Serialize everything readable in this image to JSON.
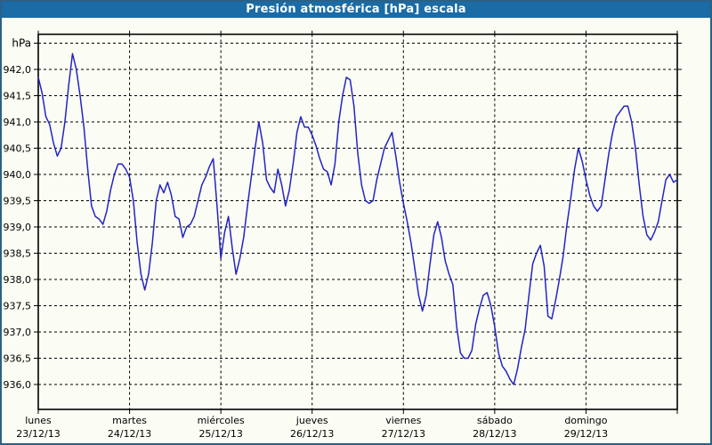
{
  "header": {
    "title": "Presión atmosférica [hPa] escala"
  },
  "colors": {
    "titlebar_bg": "#1a6ba6",
    "titlebar_text": "#ffffff",
    "window_border": "#2c6187",
    "background": "#fbfcf4",
    "grid": "#000000",
    "axis_text": "#000000",
    "line": "#2424c4"
  },
  "chart_data": {
    "type": "line",
    "title": "Presión atmosférica [hPa] escala",
    "ylabel": "hPa",
    "unit": "hPa",
    "grid": "dashed",
    "legend_position": "none",
    "decimal_comma": true,
    "ylim": [
      935.5,
      942.7
    ],
    "y_grid_min": 936.0,
    "y_grid_max": 942.5,
    "y_step": 0.5,
    "y_labeled_max": 942.0,
    "categories": [
      {
        "day": "lunes",
        "date": "23/12/13"
      },
      {
        "day": "martes",
        "date": "24/12/13"
      },
      {
        "day": "miércoles",
        "date": "25/12/13"
      },
      {
        "day": "jueves",
        "date": "26/12/13"
      },
      {
        "day": "viernes",
        "date": "27/12/13"
      },
      {
        "day": "sábado",
        "date": "28/12/13"
      },
      {
        "day": "domingo",
        "date": "29/12/13"
      }
    ],
    "points_per_day": 24,
    "series": [
      {
        "name": "Presión atmosférica",
        "color": "#2424c4",
        "values": [
          941.85,
          941.55,
          941.1,
          940.95,
          940.6,
          940.35,
          940.5,
          941.0,
          941.7,
          942.3,
          942.0,
          941.5,
          940.9,
          940.1,
          939.4,
          939.2,
          939.15,
          939.05,
          939.3,
          939.7,
          940.0,
          940.2,
          940.2,
          940.1,
          939.95,
          939.5,
          938.7,
          938.1,
          937.8,
          938.1,
          938.7,
          939.5,
          939.8,
          939.65,
          939.85,
          939.6,
          939.2,
          939.15,
          938.8,
          939.0,
          939.05,
          939.2,
          939.5,
          939.8,
          939.95,
          940.15,
          940.3,
          939.4,
          938.4,
          938.9,
          939.2,
          938.6,
          938.1,
          938.4,
          938.8,
          939.4,
          939.95,
          940.5,
          941.0,
          940.6,
          939.9,
          939.75,
          939.65,
          940.1,
          939.8,
          939.4,
          939.7,
          940.2,
          940.8,
          941.1,
          940.9,
          940.9,
          940.75,
          940.55,
          940.3,
          940.1,
          940.05,
          939.8,
          940.2,
          941.0,
          941.5,
          941.85,
          941.8,
          941.3,
          940.4,
          939.8,
          939.5,
          939.45,
          939.5,
          939.9,
          940.2,
          940.5,
          940.65,
          940.8,
          940.35,
          939.85,
          939.45,
          939.1,
          938.7,
          938.2,
          937.7,
          937.4,
          937.7,
          938.3,
          938.85,
          939.1,
          938.8,
          938.35,
          938.1,
          937.9,
          937.1,
          936.6,
          936.5,
          936.5,
          936.65,
          937.15,
          937.45,
          937.7,
          937.75,
          937.5,
          937.1,
          936.6,
          936.35,
          936.25,
          936.1,
          936.0,
          936.3,
          936.7,
          937.05,
          937.7,
          938.3,
          938.5,
          938.65,
          938.25,
          937.3,
          937.25,
          937.6,
          938.0,
          938.45,
          939.05,
          939.55,
          940.1,
          940.5,
          940.25,
          939.9,
          939.6,
          939.4,
          939.3,
          939.4,
          939.9,
          940.4,
          940.8,
          941.1,
          941.2,
          941.3,
          941.3,
          941.0,
          940.5,
          939.8,
          939.2,
          938.85,
          938.75,
          938.9,
          939.1,
          939.5,
          939.9,
          940.0,
          939.85,
          939.9
        ]
      }
    ]
  }
}
